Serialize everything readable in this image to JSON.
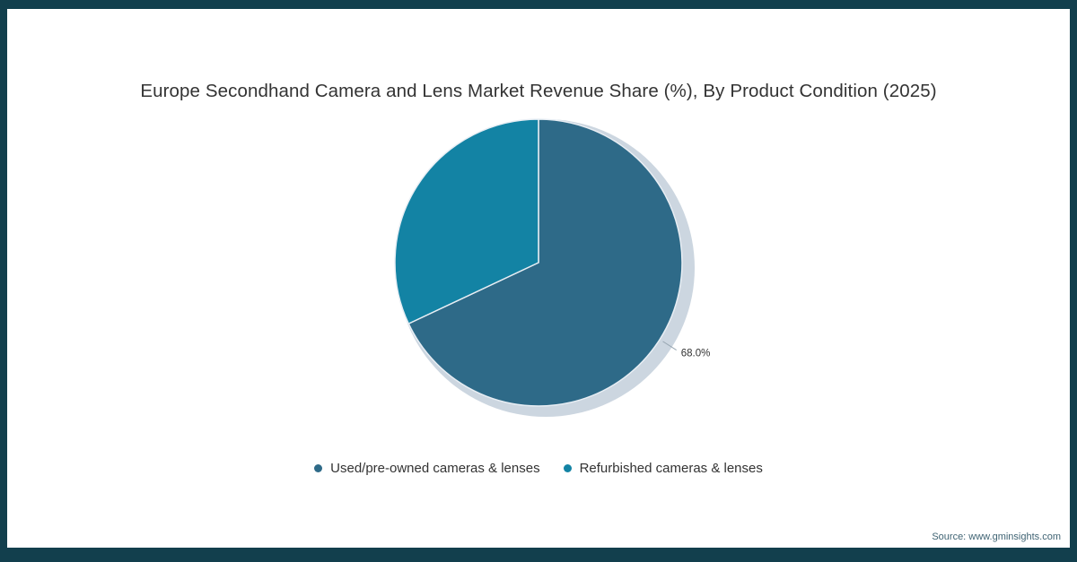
{
  "title": "Europe Secondhand Camera and Lens Market Revenue Share (%), By Product Condition (2025)",
  "source": "Source: www.gminsights.com",
  "frame": {
    "border_color": "#123f4d"
  },
  "chart_data": {
    "type": "pie",
    "title": "Europe Secondhand Camera and Lens Market Revenue Share (%), By Product Condition (2025)",
    "slices": [
      {
        "label": "Used/pre-owned cameras & lenses",
        "value": 68.0,
        "color": "#2e6a88",
        "data_label": "68.0%"
      },
      {
        "label": "Refurbished cameras & lenses",
        "value": 32.0,
        "color": "#1383a4",
        "data_label": ""
      }
    ],
    "start_angle_deg": 0,
    "direction": "clockwise",
    "shadow_color": "#ccd6e0",
    "leader_line_color": "#97a6b1",
    "legend_position": "bottom",
    "year": "2025"
  }
}
